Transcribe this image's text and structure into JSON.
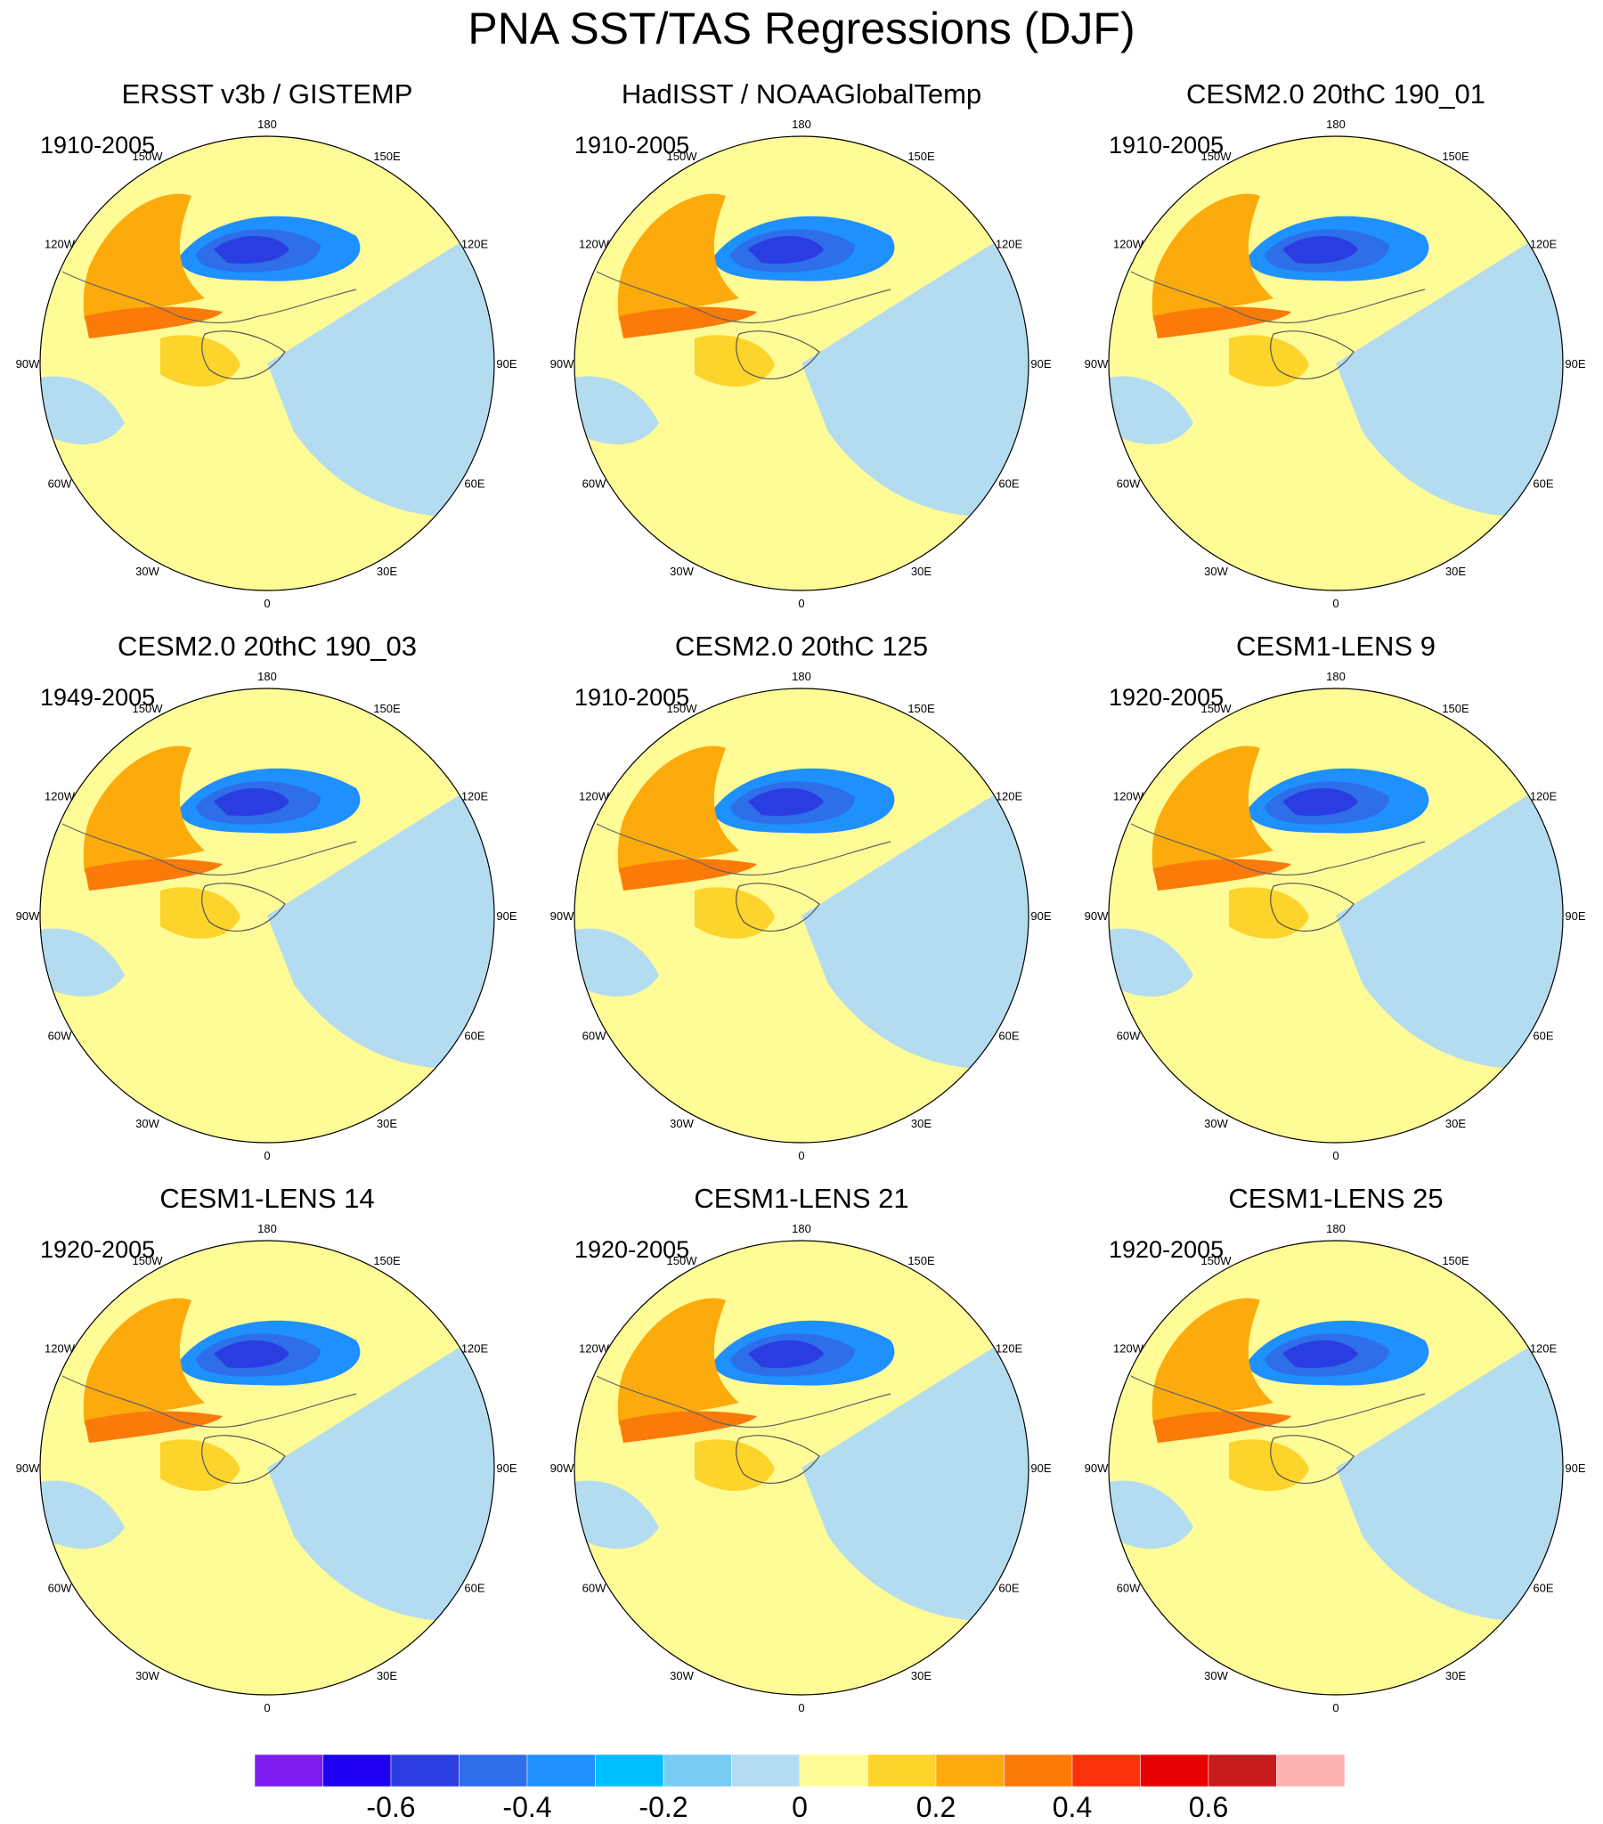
{
  "title": "PNA SST/TAS Regressions (DJF)",
  "panels": [
    {
      "title": "ERSST v3b / GISTEMP",
      "period": "1910-2005"
    },
    {
      "title": "HadISST / NOAAGlobalTemp",
      "period": "1910-2005"
    },
    {
      "title": "CESM2.0 20thC 190_01",
      "period": "1910-2005"
    },
    {
      "title": "CESM2.0 20thC 190_03",
      "period": "1949-2005"
    },
    {
      "title": "CESM2.0 20thC 125",
      "period": "1910-2005"
    },
    {
      "title": "CESM1-LENS 9",
      "period": "1920-2005"
    },
    {
      "title": "CESM1-LENS 14",
      "period": "1920-2005"
    },
    {
      "title": "CESM1-LENS 21",
      "period": "1920-2005"
    },
    {
      "title": "CESM1-LENS 25",
      "period": "1920-2005"
    }
  ],
  "longitude_labels": [
    "180",
    "150E",
    "120E",
    "90E",
    "60E",
    "30E",
    "0",
    "30W",
    "60W",
    "90W",
    "120W",
    "150W"
  ],
  "colorbar": {
    "colors": [
      "#7d1cf0",
      "#1d00f2",
      "#2a3de0",
      "#2e6ee8",
      "#1e90ff",
      "#00bfff",
      "#77ccf2",
      "#b4dcf0",
      "#fffb96",
      "#fcd42b",
      "#fcaa0c",
      "#fa7a0a",
      "#fa330a",
      "#e60000",
      "#c81c1c",
      "#ffb2b2"
    ],
    "tick_labels": [
      "-0.6",
      "-0.4",
      "-0.2",
      "0",
      "0.2",
      "0.4",
      "0.6"
    ]
  }
}
